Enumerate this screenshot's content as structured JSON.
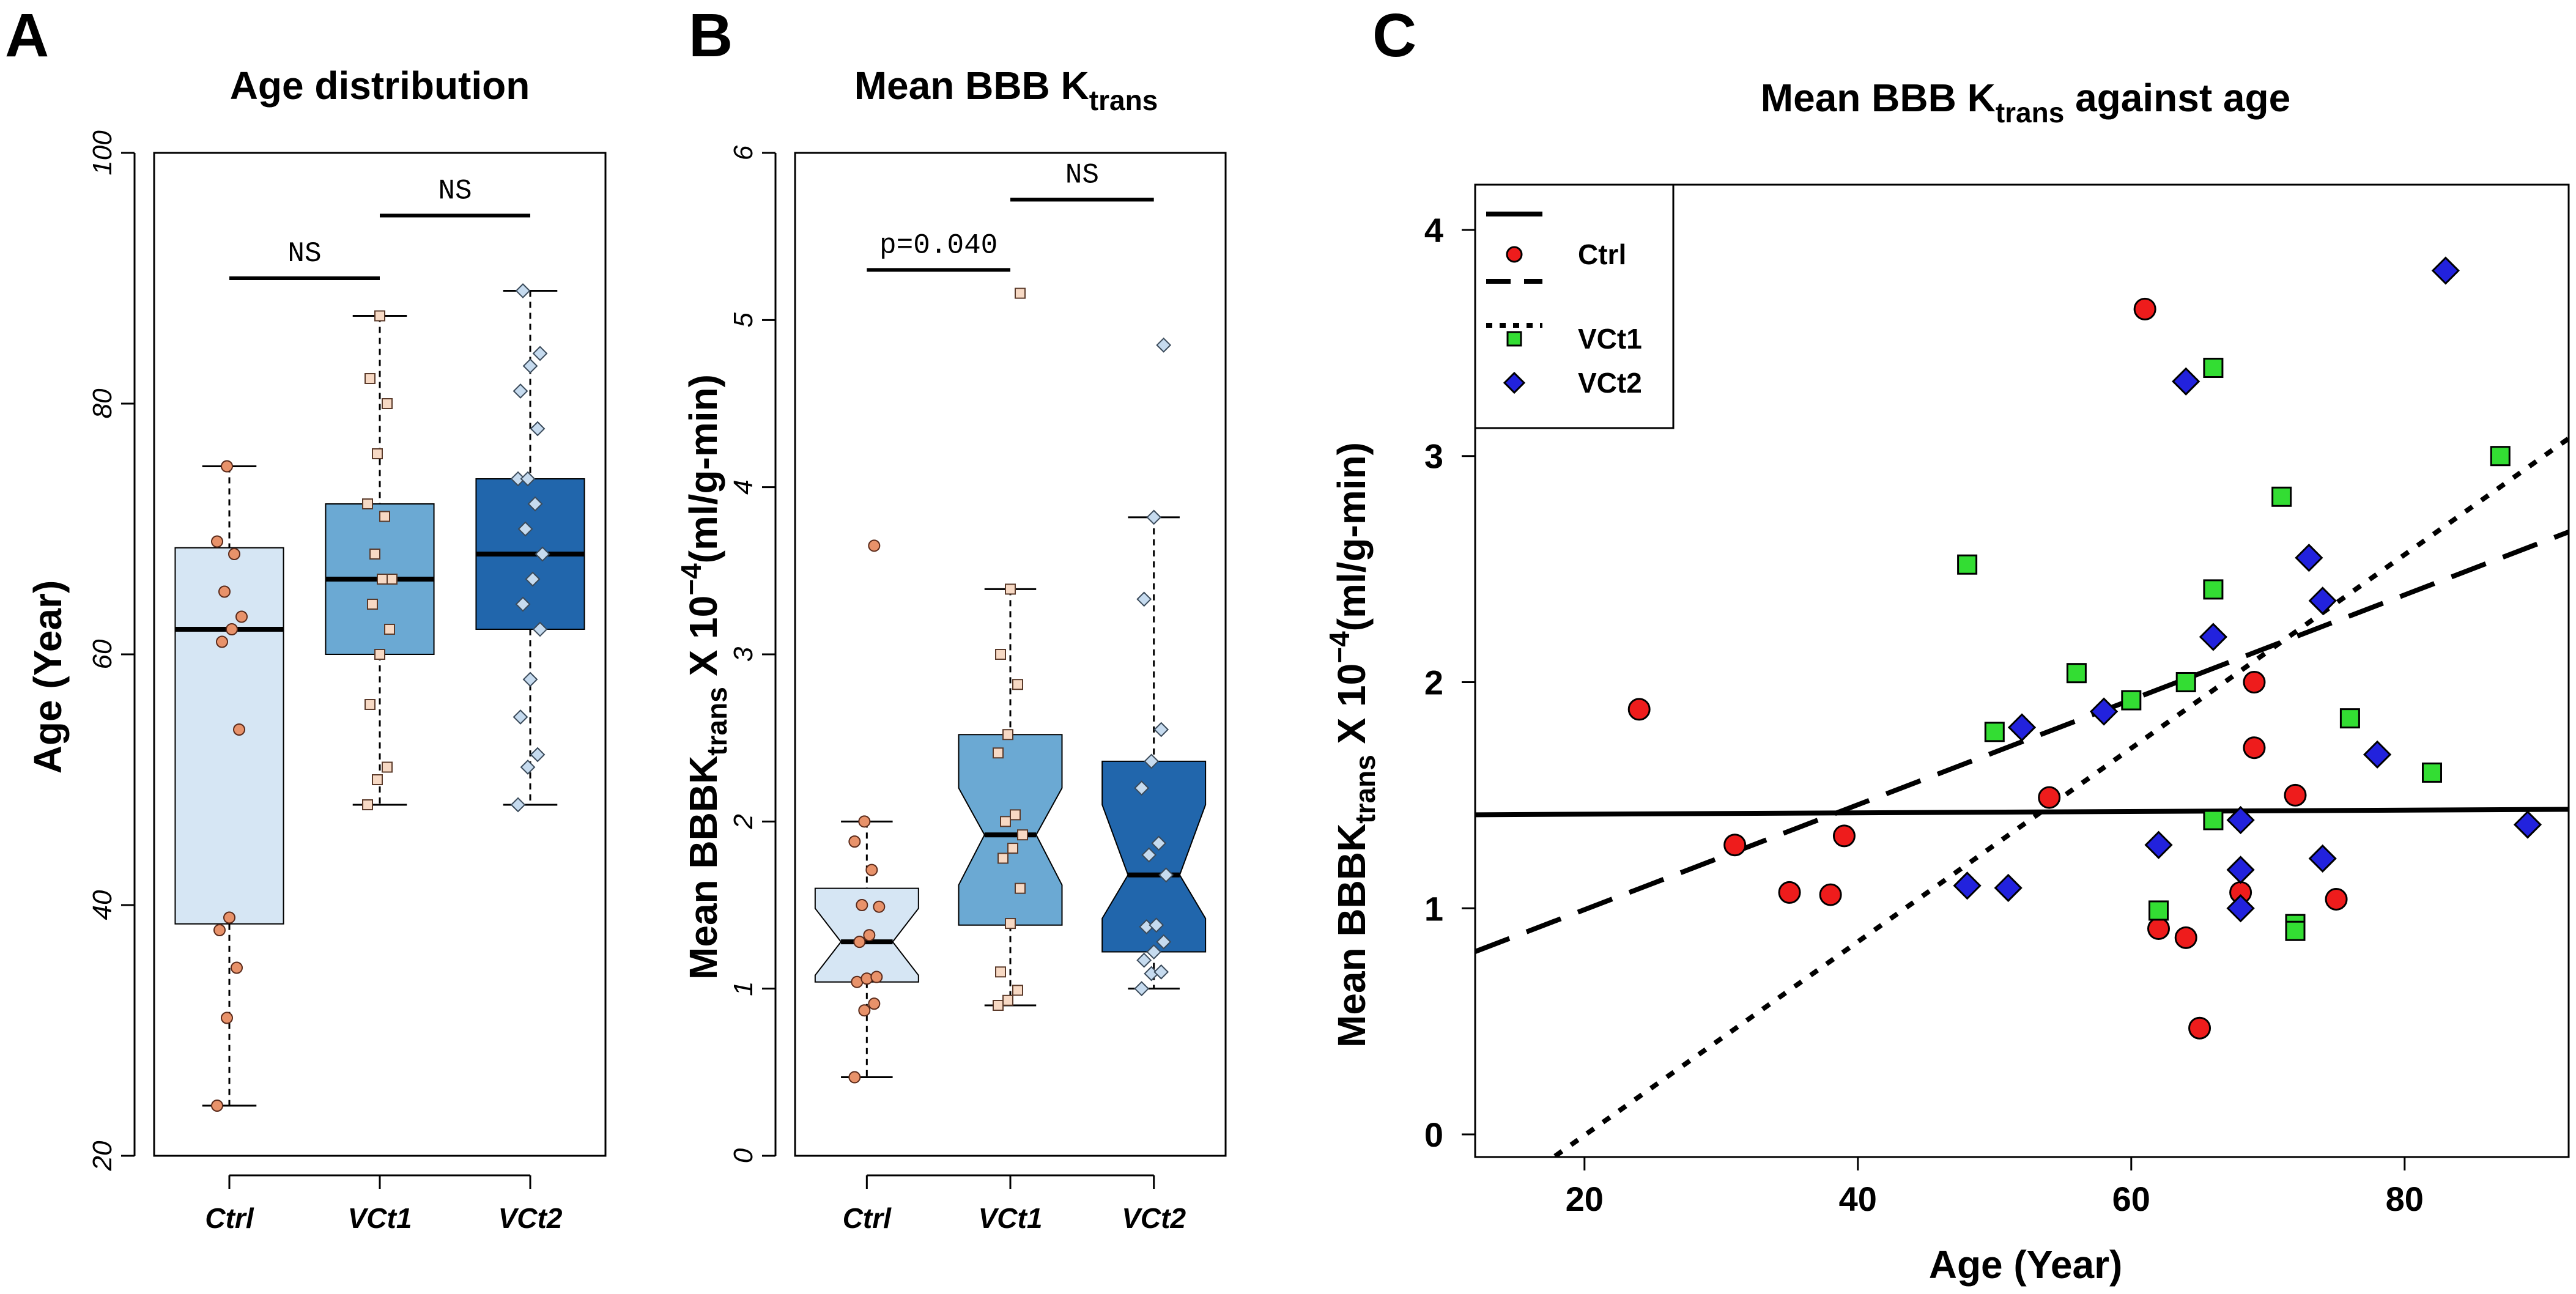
{
  "chart_data": [
    {
      "panel": "A",
      "type": "box",
      "title": "Age distribution",
      "ylabel": "Age (Year)",
      "ylim": [
        20,
        100
      ],
      "yticks": [
        20,
        40,
        60,
        80,
        100
      ],
      "categories": [
        "Ctrl",
        "VCt1",
        "VCt2"
      ],
      "colors": [
        "#d6e6f4",
        "#6ba9d3",
        "#2166ac"
      ],
      "point_colors": [
        "#e8926a",
        "#f7d9c4",
        "#c6dbef"
      ],
      "boxes": [
        {
          "min": 24,
          "q1": 38.5,
          "median": 62,
          "q3": 68.5,
          "max": 75
        },
        {
          "min": 48,
          "q1": 60,
          "median": 66,
          "q3": 72,
          "max": 87
        },
        {
          "min": 48,
          "q1": 62,
          "median": 68,
          "q3": 74,
          "max": 89
        }
      ],
      "points": [
        [
          24,
          31,
          35,
          38,
          39,
          54,
          61,
          62,
          63,
          65,
          68,
          69,
          75
        ],
        [
          48,
          50,
          51,
          56,
          60,
          62,
          64,
          66,
          66,
          68,
          71,
          72,
          76,
          80,
          82,
          87
        ],
        [
          48,
          51,
          52,
          55,
          58,
          62,
          64,
          66,
          68,
          70,
          72,
          74,
          74,
          78,
          81,
          83,
          84,
          89
        ]
      ],
      "comparisons": [
        {
          "from": 0,
          "to": 1,
          "label": "NS",
          "y": 90
        },
        {
          "from": 1,
          "to": 2,
          "label": "NS",
          "y": 95
        }
      ]
    },
    {
      "panel": "B",
      "type": "box",
      "notched": true,
      "title_main": "Mean BBB K",
      "title_sub": "trans",
      "ylabel_main": "Mean BBBK",
      "ylabel_sub": "trans",
      "ylabel_rest": " X 10",
      "ylabel_sup": "−4",
      "ylabel_units": "(ml/g-min)",
      "ylim": [
        0,
        6
      ],
      "yticks": [
        0,
        1,
        2,
        3,
        4,
        5,
        6
      ],
      "categories": [
        "Ctrl",
        "VCt1",
        "VCt2"
      ],
      "colors": [
        "#d6e6f4",
        "#6ba9d3",
        "#2166ac"
      ],
      "point_colors": [
        "#e8926a",
        "#f7d9c4",
        "#c6dbef"
      ],
      "boxes": [
        {
          "min": 0.47,
          "q1": 1.04,
          "median": 1.28,
          "q3": 1.6,
          "max": 2.0,
          "notch": [
            1.08,
            1.48
          ]
        },
        {
          "min": 0.9,
          "q1": 1.38,
          "median": 1.92,
          "q3": 2.52,
          "max": 3.39,
          "notch": [
            1.62,
            2.2
          ]
        },
        {
          "min": 1.0,
          "q1": 1.22,
          "median": 1.68,
          "q3": 2.36,
          "max": 3.82,
          "notch": [
            1.42,
            2.1
          ]
        }
      ],
      "points": [
        [
          0.47,
          0.87,
          0.91,
          1.04,
          1.06,
          1.07,
          1.28,
          1.32,
          1.49,
          1.5,
          1.71,
          1.88,
          2.0,
          3.65
        ],
        [
          0.9,
          0.93,
          0.99,
          1.1,
          1.39,
          1.6,
          1.78,
          1.84,
          1.92,
          2.0,
          2.04,
          2.41,
          2.52,
          2.82,
          3.0,
          3.39,
          5.16
        ],
        [
          1.0,
          1.09,
          1.1,
          1.17,
          1.22,
          1.28,
          1.37,
          1.38,
          1.68,
          1.8,
          1.87,
          2.2,
          2.36,
          2.55,
          3.33,
          3.82,
          4.85
        ]
      ],
      "comparisons": [
        {
          "from": 0,
          "to": 1,
          "label": "p=0.040",
          "y": 5.3
        },
        {
          "from": 1,
          "to": 2,
          "label": "NS",
          "y": 5.72
        }
      ]
    },
    {
      "panel": "C",
      "type": "scatter",
      "title_main": "Mean BBB K",
      "title_sub": "trans",
      "title_rest": " against age",
      "xlabel": "Age (Year)",
      "ylabel_main": "Mean BBBK",
      "ylabel_sub": "trans",
      "ylabel_rest": " X 10",
      "ylabel_sup": "−4",
      "ylabel_units": "(ml/g-min)",
      "xlim": [
        12,
        92
      ],
      "ylim": [
        -0.1,
        4.2
      ],
      "xticks": [
        20,
        40,
        60,
        80
      ],
      "yticks": [
        0,
        1,
        2,
        3,
        4
      ],
      "series": [
        {
          "name": "Ctrl",
          "marker": "circle",
          "color": "#ee1c1c",
          "points": [
            [
              24,
              1.88
            ],
            [
              31,
              1.28
            ],
            [
              35,
              1.07
            ],
            [
              38,
              1.06
            ],
            [
              39,
              1.32
            ],
            [
              54,
              1.49
            ],
            [
              61,
              3.65
            ],
            [
              62,
              0.91
            ],
            [
              64,
              0.87
            ],
            [
              65,
              0.47
            ],
            [
              68,
              1.07
            ],
            [
              69,
              2.0
            ],
            [
              69,
              1.71
            ],
            [
              72,
              1.5
            ],
            [
              75,
              1.04
            ]
          ],
          "fit": [
            1.41,
            0.0003
          ]
        },
        {
          "name": "VCt1",
          "marker": "square",
          "color": "#33dd33",
          "points": [
            [
              48,
              2.52
            ],
            [
              50,
              1.78
            ],
            [
              56,
              2.04
            ],
            [
              60,
              1.92
            ],
            [
              62,
              0.99
            ],
            [
              64,
              2.0
            ],
            [
              66,
              2.41
            ],
            [
              66,
              3.39
            ],
            [
              66,
              1.39
            ],
            [
              71,
              2.82
            ],
            [
              72,
              0.93
            ],
            [
              72,
              0.9
            ],
            [
              76,
              1.84
            ],
            [
              82,
              1.6
            ],
            [
              87,
              3.0
            ]
          ],
          "fit": [
            0.53,
            0.0232
          ]
        },
        {
          "name": "VCt2",
          "marker": "diamond",
          "color": "#2222dd",
          "points": [
            [
              48,
              1.1
            ],
            [
              51,
              1.09
            ],
            [
              52,
              1.8
            ],
            [
              58,
              1.87
            ],
            [
              62,
              1.28
            ],
            [
              64,
              3.33
            ],
            [
              66,
              2.2
            ],
            [
              68,
              1.39
            ],
            [
              68,
              1.17
            ],
            [
              68,
              1.0
            ],
            [
              73,
              2.55
            ],
            [
              74,
              2.36
            ],
            [
              74,
              1.22
            ],
            [
              78,
              1.68
            ],
            [
              83,
              3.82
            ],
            [
              89,
              1.37
            ]
          ],
          "fit": [
            -0.86,
            0.0428
          ]
        }
      ]
    }
  ],
  "panel_letters": {
    "a": "A",
    "b": "B",
    "c": "C"
  }
}
